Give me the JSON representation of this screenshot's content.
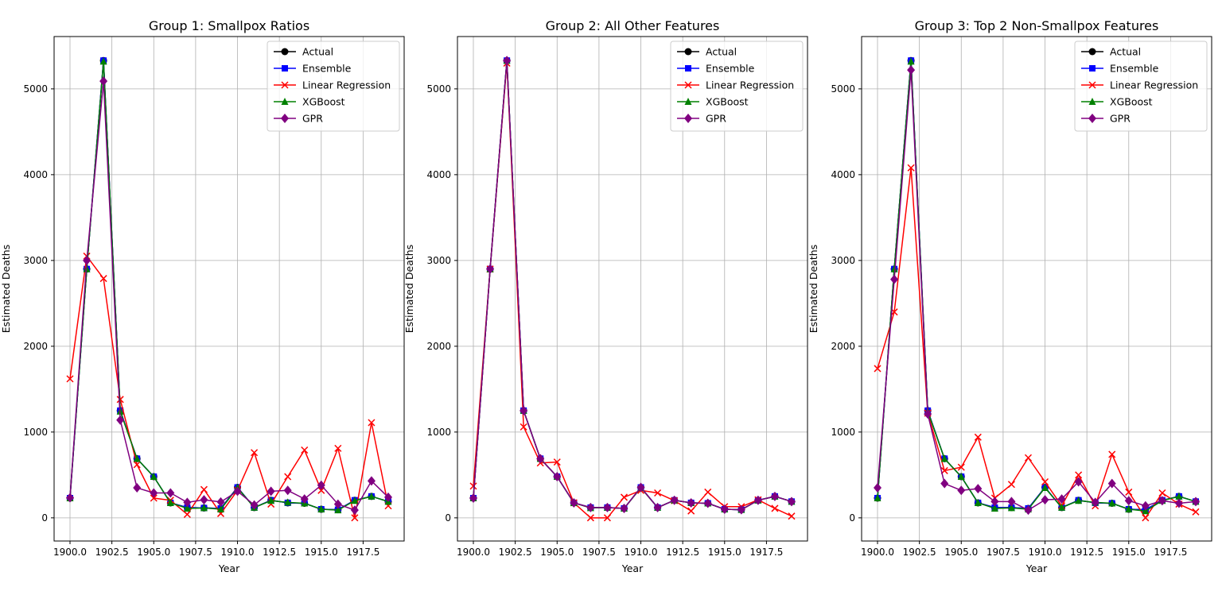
{
  "chart_data": [
    {
      "type": "line",
      "title": "Group 1: Smallpox Ratios",
      "xlabel": "Year",
      "ylabel": "Estimated Deaths",
      "xlim": [
        1899.05,
        1919.95
      ],
      "ylim": [
        -270,
        5610
      ],
      "xticks": [
        1900.0,
        1902.5,
        1905.0,
        1907.5,
        1910.0,
        1912.5,
        1915.0,
        1917.5
      ],
      "xtick_labels": [
        "1900.0",
        "1902.5",
        "1905.0",
        "1907.5",
        "1910.0",
        "1912.5",
        "1915.0",
        "1917.5"
      ],
      "yticks": [
        0,
        1000,
        2000,
        3000,
        4000,
        5000
      ],
      "ytick_labels": [
        "0",
        "1000",
        "2000",
        "3000",
        "4000",
        "5000"
      ],
      "grid": true,
      "legend": "top-right",
      "x": [
        1900,
        1901,
        1902,
        1903,
        1904,
        1905,
        1906,
        1907,
        1908,
        1909,
        1910,
        1911,
        1912,
        1913,
        1914,
        1915,
        1916,
        1917,
        1918,
        1919
      ],
      "series": [
        {
          "name": "Actual",
          "color": "#000000",
          "marker": "circle",
          "values": [
            230,
            2900,
            5330,
            1250,
            690,
            480,
            175,
            120,
            115,
            110,
            355,
            120,
            205,
            175,
            170,
            100,
            95,
            205,
            250,
            190
          ]
        },
        {
          "name": "Ensemble",
          "color": "#0000ff",
          "marker": "square",
          "values": [
            230,
            2900,
            5330,
            1250,
            690,
            480,
            175,
            120,
            115,
            110,
            355,
            120,
            205,
            175,
            170,
            100,
            95,
            205,
            250,
            190
          ]
        },
        {
          "name": "Linear Regression",
          "color": "#ff0000",
          "marker": "x",
          "values": [
            1620,
            3050,
            2790,
            1380,
            620,
            230,
            205,
            40,
            330,
            50,
            320,
            760,
            160,
            480,
            790,
            320,
            810,
            0,
            1110,
            140
          ]
        },
        {
          "name": "XGBoost",
          "color": "#008000",
          "marker": "triangle",
          "values": [
            230,
            2900,
            5320,
            1240,
            690,
            480,
            175,
            110,
            115,
            100,
            350,
            120,
            200,
            180,
            170,
            100,
            90,
            200,
            250,
            190
          ]
        },
        {
          "name": "GPR",
          "color": "#800080",
          "marker": "diamond",
          "values": [
            235,
            3000,
            5090,
            1140,
            350,
            290,
            290,
            180,
            210,
            185,
            310,
            150,
            310,
            320,
            220,
            380,
            160,
            90,
            430,
            240
          ]
        }
      ]
    },
    {
      "type": "line",
      "title": "Group 2: All Other Features",
      "xlabel": "Year",
      "ylabel": "Estimated Deaths",
      "xlim": [
        1899.05,
        1919.95
      ],
      "ylim": [
        -270,
        5610
      ],
      "xticks": [
        1900.0,
        1902.5,
        1905.0,
        1907.5,
        1910.0,
        1912.5,
        1915.0,
        1917.5
      ],
      "xtick_labels": [
        "1900.0",
        "1902.5",
        "1905.0",
        "1907.5",
        "1910.0",
        "1912.5",
        "1915.0",
        "1917.5"
      ],
      "yticks": [
        0,
        1000,
        2000,
        3000,
        4000,
        5000
      ],
      "ytick_labels": [
        "0",
        "1000",
        "2000",
        "3000",
        "4000",
        "5000"
      ],
      "grid": true,
      "legend": "top-right",
      "x": [
        1900,
        1901,
        1902,
        1903,
        1904,
        1905,
        1906,
        1907,
        1908,
        1909,
        1910,
        1911,
        1912,
        1913,
        1914,
        1915,
        1916,
        1917,
        1918,
        1919
      ],
      "series": [
        {
          "name": "Actual",
          "color": "#000000",
          "marker": "circle",
          "values": [
            230,
            2900,
            5330,
            1250,
            690,
            480,
            175,
            120,
            120,
            110,
            355,
            120,
            205,
            175,
            170,
            100,
            95,
            205,
            250,
            190
          ]
        },
        {
          "name": "Ensemble",
          "color": "#0000ff",
          "marker": "square",
          "values": [
            230,
            2900,
            5330,
            1250,
            690,
            480,
            175,
            120,
            120,
            110,
            355,
            120,
            205,
            175,
            170,
            100,
            95,
            205,
            250,
            190
          ]
        },
        {
          "name": "Linear Regression",
          "color": "#ff0000",
          "marker": "x",
          "values": [
            370,
            2900,
            5300,
            1060,
            640,
            650,
            175,
            0,
            0,
            240,
            320,
            290,
            200,
            80,
            300,
            130,
            130,
            210,
            110,
            20
          ]
        },
        {
          "name": "XGBoost",
          "color": "#008000",
          "marker": "triangle",
          "values": [
            230,
            2900,
            5330,
            1250,
            690,
            480,
            175,
            115,
            120,
            110,
            350,
            120,
            205,
            175,
            170,
            100,
            95,
            205,
            250,
            190
          ]
        },
        {
          "name": "GPR",
          "color": "#800080",
          "marker": "diamond",
          "values": [
            230,
            2900,
            5330,
            1250,
            690,
            480,
            175,
            120,
            120,
            110,
            355,
            120,
            205,
            175,
            170,
            100,
            95,
            205,
            250,
            190
          ]
        }
      ]
    },
    {
      "type": "line",
      "title": "Group 3: Top 2 Non-Smallpox Features",
      "xlabel": "Year",
      "ylabel": "Estimated Deaths",
      "xlim": [
        1899.05,
        1919.95
      ],
      "ylim": [
        -270,
        5610
      ],
      "xticks": [
        1900.0,
        1902.5,
        1905.0,
        1907.5,
        1910.0,
        1912.5,
        1915.0,
        1917.5
      ],
      "xtick_labels": [
        "1900.0",
        "1902.5",
        "1905.0",
        "1907.5",
        "1910.0",
        "1912.5",
        "1915.0",
        "1917.5"
      ],
      "yticks": [
        0,
        1000,
        2000,
        3000,
        4000,
        5000
      ],
      "ytick_labels": [
        "0",
        "1000",
        "2000",
        "3000",
        "4000",
        "5000"
      ],
      "grid": true,
      "legend": "top-right",
      "x": [
        1900,
        1901,
        1902,
        1903,
        1904,
        1905,
        1906,
        1907,
        1908,
        1909,
        1910,
        1911,
        1912,
        1913,
        1914,
        1915,
        1916,
        1917,
        1918,
        1919
      ],
      "series": [
        {
          "name": "Actual",
          "color": "#000000",
          "marker": "circle",
          "values": [
            230,
            2900,
            5330,
            1250,
            690,
            480,
            175,
            120,
            120,
            110,
            355,
            120,
            205,
            175,
            170,
            100,
            95,
            205,
            250,
            190
          ]
        },
        {
          "name": "Ensemble",
          "color": "#0000ff",
          "marker": "square",
          "values": [
            230,
            2900,
            5330,
            1250,
            690,
            480,
            175,
            120,
            120,
            110,
            355,
            120,
            205,
            175,
            170,
            100,
            95,
            205,
            250,
            190
          ]
        },
        {
          "name": "Linear Regression",
          "color": "#ff0000",
          "marker": "x",
          "values": [
            1740,
            2400,
            4080,
            1220,
            550,
            590,
            940,
            230,
            390,
            700,
            420,
            140,
            500,
            140,
            740,
            300,
            0,
            290,
            160,
            70
          ]
        },
        {
          "name": "XGBoost",
          "color": "#008000",
          "marker": "triangle",
          "values": [
            230,
            2900,
            5320,
            1240,
            690,
            480,
            175,
            110,
            115,
            100,
            350,
            120,
            200,
            180,
            170,
            100,
            80,
            200,
            250,
            190
          ]
        },
        {
          "name": "GPR",
          "color": "#800080",
          "marker": "diamond",
          "values": [
            350,
            2780,
            5220,
            1210,
            400,
            320,
            340,
            190,
            190,
            90,
            210,
            220,
            420,
            180,
            400,
            200,
            140,
            200,
            170,
            190
          ]
        }
      ]
    }
  ]
}
